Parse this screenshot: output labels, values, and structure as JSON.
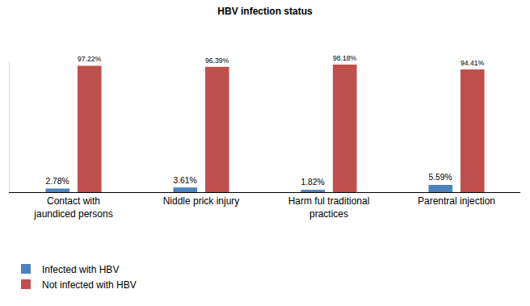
{
  "chart_data": {
    "type": "bar",
    "title": "HBV infection status",
    "categories": [
      "Contact with jaundiced persons",
      "Niddle prick injury",
      "Harm ful traditional practices",
      "Parentral injection"
    ],
    "series": [
      {
        "name": "Infected with HBV",
        "color": "#4f81bd",
        "values": [
          2.78,
          3.61,
          1.82,
          5.59
        ],
        "value_labels": [
          "2.78%",
          "3.61%",
          "1.82%",
          "5.59%"
        ]
      },
      {
        "name": "Not infected with HBV",
        "color": "#c0504d",
        "values": [
          97.22,
          96.39,
          98.18,
          94.41
        ],
        "value_labels": [
          "97.22%",
          "96.39%",
          "98.18%",
          "94.41%"
        ]
      }
    ],
    "ylim": [
      0,
      100
    ],
    "grid": false,
    "legend": "bottom left",
    "data_labels": true,
    "tick_labels": "x"
  }
}
